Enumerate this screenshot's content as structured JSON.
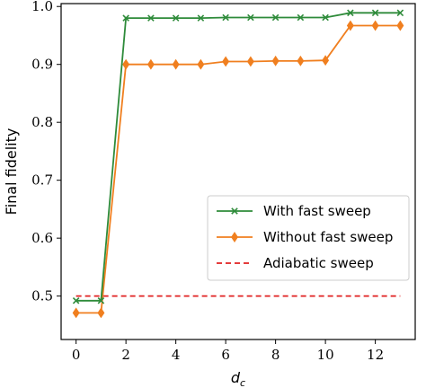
{
  "chart_data": {
    "type": "line",
    "title": "",
    "xlabel": "d",
    "xlabel_subscript": "c",
    "ylabel": "Final fidelity",
    "xlim": [
      -0.6,
      13.6
    ],
    "ylim": [
      0.425,
      1.005
    ],
    "xticks": [
      0,
      2,
      4,
      6,
      8,
      10,
      12
    ],
    "xtick_labels": [
      "0",
      "2",
      "4",
      "6",
      "8",
      "10",
      "12"
    ],
    "yticks": [
      0.5,
      0.6,
      0.7,
      0.8,
      0.9,
      1.0
    ],
    "ytick_labels": [
      "0.5",
      "0.6",
      "0.7",
      "0.8",
      "0.9",
      "1.0"
    ],
    "grid": false,
    "legend_position": "center-right",
    "x": [
      0,
      1,
      2,
      3,
      4,
      5,
      6,
      7,
      8,
      9,
      10,
      11,
      12,
      13
    ],
    "series": [
      {
        "name": "With fast sweep",
        "color": "#2e8b3a",
        "marker": "x",
        "values": [
          0.492,
          0.492,
          0.98,
          0.98,
          0.98,
          0.98,
          0.981,
          0.981,
          0.981,
          0.981,
          0.981,
          0.989,
          0.989,
          0.989
        ]
      },
      {
        "name": "Without fast sweep",
        "color": "#f07f1f",
        "marker": "diamond",
        "values": [
          0.471,
          0.471,
          0.9,
          0.9,
          0.9,
          0.9,
          0.905,
          0.905,
          0.906,
          0.906,
          0.907,
          0.967,
          0.967,
          0.967
        ]
      },
      {
        "name": "Adiabatic sweep",
        "color": "#e02020",
        "marker": "none",
        "linestyle": "dashed",
        "values": [
          0.5,
          0.5,
          0.5,
          0.5,
          0.5,
          0.5,
          0.5,
          0.5,
          0.5,
          0.5,
          0.5,
          0.5,
          0.5,
          0.5
        ]
      }
    ]
  }
}
